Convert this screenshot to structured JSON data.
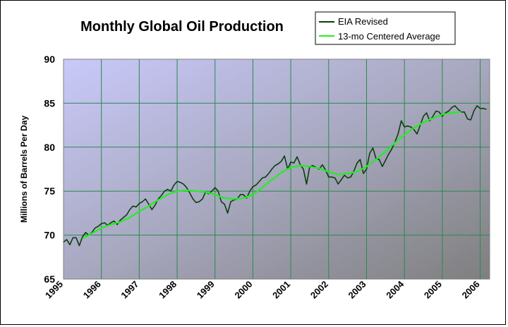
{
  "chart_data": {
    "type": "line",
    "title": "Monthly Global Oil Production",
    "xlabel": "",
    "ylabel": "Millions of Barrels Per Day",
    "xlim": [
      1995,
      2006.25
    ],
    "ylim": [
      65,
      90
    ],
    "yticks": [
      65,
      70,
      75,
      80,
      85,
      90
    ],
    "xticks": [
      "1995",
      "1996",
      "1997",
      "1998",
      "1999",
      "2000",
      "2001",
      "2002",
      "2003",
      "2004",
      "2005",
      "2006"
    ],
    "grid": true,
    "legend_position": "top-right",
    "series": [
      {
        "name": "EIA Revised",
        "color": "#0d3d0d",
        "x": [
          1995.0,
          1995.083,
          1995.167,
          1995.25,
          1995.333,
          1995.417,
          1995.5,
          1995.583,
          1995.667,
          1995.75,
          1995.833,
          1995.917,
          1996.0,
          1996.083,
          1996.167,
          1996.25,
          1996.333,
          1996.417,
          1996.5,
          1996.583,
          1996.667,
          1996.75,
          1996.833,
          1996.917,
          1997.0,
          1997.083,
          1997.167,
          1997.25,
          1997.333,
          1997.417,
          1997.5,
          1997.583,
          1997.667,
          1997.75,
          1997.833,
          1997.917,
          1998.0,
          1998.083,
          1998.167,
          1998.25,
          1998.333,
          1998.417,
          1998.5,
          1998.583,
          1998.667,
          1998.75,
          1998.833,
          1998.917,
          1999.0,
          1999.083,
          1999.167,
          1999.25,
          1999.333,
          1999.417,
          1999.5,
          1999.583,
          1999.667,
          1999.75,
          1999.833,
          1999.917,
          2000.0,
          2000.083,
          2000.167,
          2000.25,
          2000.333,
          2000.417,
          2000.5,
          2000.583,
          2000.667,
          2000.75,
          2000.833,
          2000.917,
          2001.0,
          2001.083,
          2001.167,
          2001.25,
          2001.333,
          2001.417,
          2001.5,
          2001.583,
          2001.667,
          2001.75,
          2001.833,
          2001.917,
          2002.0,
          2002.083,
          2002.167,
          2002.25,
          2002.333,
          2002.417,
          2002.5,
          2002.583,
          2002.667,
          2002.75,
          2002.833,
          2002.917,
          2003.0,
          2003.083,
          2003.167,
          2003.25,
          2003.333,
          2003.417,
          2003.5,
          2003.583,
          2003.667,
          2003.75,
          2003.833,
          2003.917,
          2004.0,
          2004.083,
          2004.167,
          2004.25,
          2004.333,
          2004.417,
          2004.5,
          2004.583,
          2004.667,
          2004.75,
          2004.833,
          2004.917,
          2005.0,
          2005.083,
          2005.167,
          2005.25,
          2005.333,
          2005.417,
          2005.5,
          2005.583,
          2005.667,
          2005.75,
          2005.833,
          2005.917,
          2006.0,
          2006.083,
          2006.167
        ],
        "values": [
          69.2,
          69.5,
          68.9,
          69.7,
          69.7,
          68.8,
          69.8,
          70.3,
          70.0,
          70.3,
          70.8,
          71.0,
          71.3,
          71.4,
          71.1,
          71.4,
          71.6,
          71.2,
          71.7,
          72.0,
          72.3,
          72.9,
          73.3,
          73.2,
          73.6,
          73.8,
          74.1,
          73.5,
          72.9,
          73.4,
          74.1,
          74.5,
          75.0,
          75.2,
          75.0,
          75.7,
          76.1,
          76.0,
          75.8,
          75.4,
          74.8,
          74.1,
          73.7,
          73.8,
          74.1,
          74.9,
          74.7,
          75.0,
          75.4,
          75.0,
          73.8,
          73.5,
          72.5,
          73.8,
          74.0,
          74.1,
          74.6,
          74.6,
          74.2,
          75.0,
          75.5,
          75.7,
          76.1,
          76.5,
          76.6,
          77.0,
          77.5,
          77.9,
          78.1,
          78.4,
          79.0,
          77.5,
          78.3,
          78.2,
          78.9,
          78.0,
          77.5,
          75.8,
          77.8,
          77.9,
          77.7,
          77.5,
          78.0,
          77.4,
          76.6,
          76.6,
          76.5,
          75.8,
          76.3,
          76.8,
          76.5,
          76.6,
          77.3,
          78.2,
          78.6,
          77.0,
          77.5,
          79.3,
          79.9,
          78.7,
          78.6,
          77.8,
          78.5,
          79.2,
          79.8,
          80.6,
          81.5,
          83.0,
          82.3,
          82.4,
          82.3,
          82.0,
          81.5,
          82.5,
          83.5,
          83.9,
          83.0,
          83.5,
          84.1,
          84.0,
          83.5,
          83.9,
          84.1,
          84.5,
          84.7,
          84.3,
          84.0,
          84.0,
          83.2,
          83.1,
          84.1,
          84.7,
          84.4,
          84.4,
          84.3
        ]
      },
      {
        "name": "13-mo Centered Average",
        "color": "#22ee22",
        "x": [
          1995.5,
          1995.75,
          1996.0,
          1996.25,
          1996.5,
          1996.75,
          1997.0,
          1997.25,
          1997.5,
          1997.75,
          1998.0,
          1998.25,
          1998.5,
          1998.75,
          1999.0,
          1999.25,
          1999.5,
          1999.75,
          2000.0,
          2000.25,
          2000.5,
          2000.75,
          2001.0,
          2001.25,
          2001.5,
          2001.75,
          2002.0,
          2002.25,
          2002.5,
          2002.75,
          2003.0,
          2003.25,
          2003.5,
          2003.75,
          2004.0,
          2004.25,
          2004.5,
          2004.75,
          2005.0,
          2005.25,
          2005.5
        ],
        "values": [
          69.6,
          70.2,
          70.8,
          71.2,
          71.5,
          72.0,
          72.7,
          73.3,
          74.0,
          74.6,
          75.0,
          75.1,
          75.0,
          74.9,
          74.6,
          74.2,
          74.1,
          74.2,
          74.6,
          75.4,
          76.3,
          77.1,
          77.7,
          77.9,
          77.8,
          77.6,
          77.2,
          76.9,
          77.0,
          77.2,
          77.8,
          78.6,
          79.5,
          80.5,
          81.4,
          82.2,
          82.8,
          83.3,
          83.7,
          83.9,
          84.0
        ]
      }
    ]
  }
}
